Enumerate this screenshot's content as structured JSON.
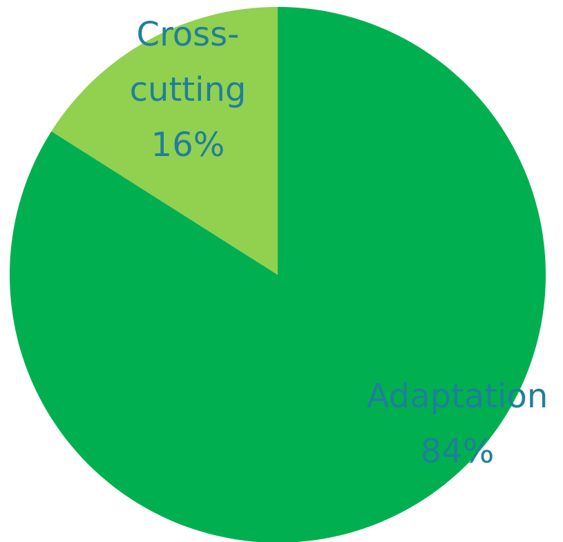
{
  "chart_data": {
    "type": "pie",
    "title": "",
    "slices": [
      {
        "label": "Adaptation",
        "percent_label": "84%",
        "value": 84,
        "color": "#00b050"
      },
      {
        "label": "Cross-cutting",
        "percent_label": "16%",
        "value": 16,
        "color": "#92d050"
      }
    ],
    "label_color": "#1f7f9a",
    "legend": "none"
  }
}
